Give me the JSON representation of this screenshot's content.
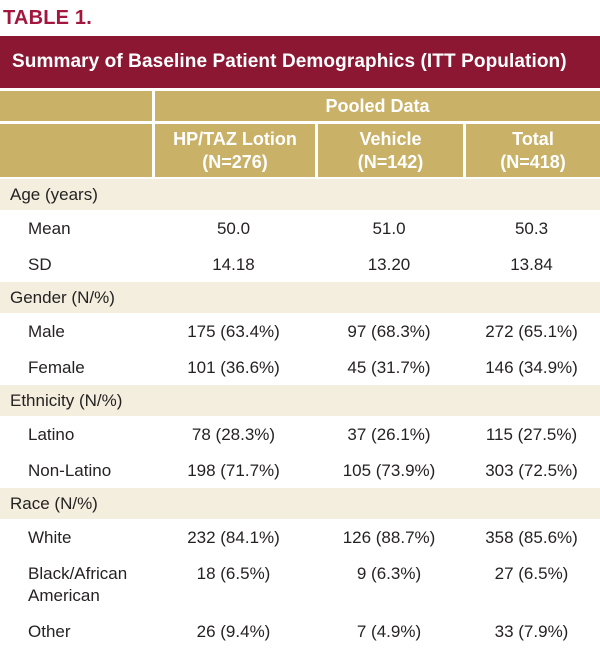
{
  "title": "TABLE 1.",
  "table": {
    "header": "Summary of Baseline Patient Demographics (ITT Population)",
    "group_header": "Pooled Data",
    "columns": [
      {
        "name": "HP/TAZ Lotion",
        "n": "(N=276)"
      },
      {
        "name": "Vehicle",
        "n": "(N=142)"
      },
      {
        "name": "Total",
        "n": "(N=418)"
      }
    ],
    "sections": [
      {
        "label": "Age (years)",
        "rows": [
          {
            "cells": [
              "Mean",
              "50.0",
              "51.0",
              "50.3"
            ]
          },
          {
            "cells": [
              "SD",
              "14.18",
              "13.20",
              "13.84"
            ]
          }
        ]
      },
      {
        "label": "Gender (N/%)",
        "rows": [
          {
            "cells": [
              "Male",
              "175 (63.4%)",
              "97 (68.3%)",
              "272 (65.1%)"
            ]
          },
          {
            "cells": [
              "Female",
              "101 (36.6%)",
              "45 (31.7%)",
              "146 (34.9%)"
            ]
          }
        ]
      },
      {
        "label": "Ethnicity (N/%)",
        "rows": [
          {
            "cells": [
              "Latino",
              "78 (28.3%)",
              "37 (26.1%)",
              "115 (27.5%)"
            ]
          },
          {
            "cells": [
              "Non-Latino",
              "198 (71.7%)",
              "105 (73.9%)",
              "303 (72.5%)"
            ]
          }
        ]
      },
      {
        "label": "Race (N/%)",
        "rows": [
          {
            "cells": [
              "White",
              "232 (84.1%)",
              "126 (88.7%)",
              "358 (85.6%)"
            ]
          },
          {
            "cells": [
              "Black/African American",
              "18 (6.5%)",
              "9 (6.3%)",
              "27 (6.5%)"
            ]
          },
          {
            "cells": [
              "Other",
              "26 (9.4%)",
              "7 (4.9%)",
              "33 (7.9%)"
            ]
          }
        ]
      }
    ]
  },
  "colors": {
    "title_red": "#A3173E",
    "header_maroon": "#8C1733",
    "column_tan": "#C9B168",
    "section_beige": "#F3EEDE",
    "body_text": "#262223",
    "header_text": "#FFFFFF"
  }
}
